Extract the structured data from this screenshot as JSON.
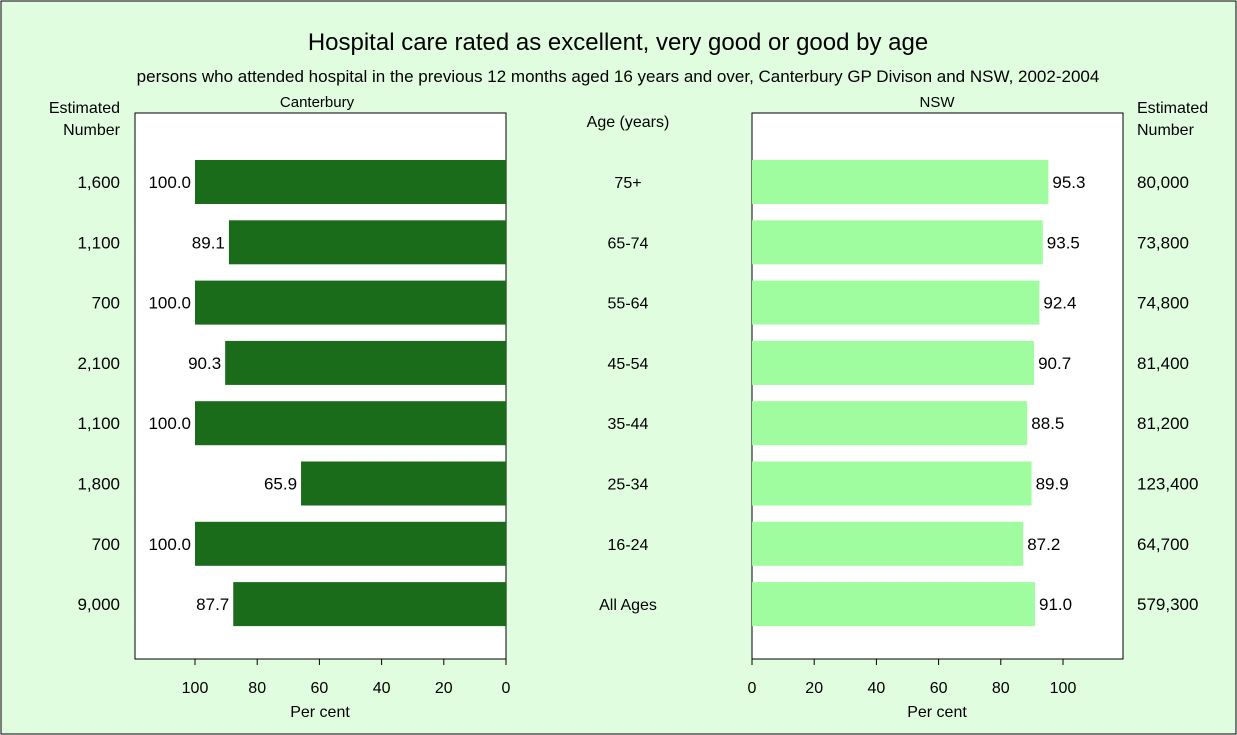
{
  "colors": {
    "background": "#e0fde0",
    "frame": "#000000",
    "canterbury_bar": "#1a6b1a",
    "nsw_bar": "#9ffc9f",
    "plot_background": "#ffffff"
  },
  "chart_data": {
    "type": "bar",
    "title": "Hospital care rated as excellent, very good or good by age",
    "subtitle": "persons who attended hospital in the previous 12 months aged 16 years and over, Canterbury GP Divison and NSW, 2002-2004",
    "category_header": "Age (years)",
    "categories": [
      "75+",
      "65-74",
      "55-64",
      "45-54",
      "35-44",
      "25-34",
      "16-24",
      "All Ages"
    ],
    "xlabel": "Per cent",
    "xlim": [
      0,
      120
    ],
    "xticks": [
      0,
      20,
      40,
      60,
      80,
      100
    ],
    "grid": false,
    "series": [
      {
        "name": "Canterbury",
        "values": [
          100.0,
          89.1,
          100.0,
          90.3,
          100.0,
          65.9,
          100.0,
          87.7
        ],
        "value_labels": [
          "100.0",
          "89.1",
          "100.0",
          "90.3",
          "100.0",
          "65.9",
          "100.0",
          "87.7"
        ],
        "estimated_number_header": [
          "Estimated",
          "Number"
        ],
        "estimated_numbers": [
          "1,600",
          "1,100",
          "700",
          "2,100",
          "1,100",
          "1,800",
          "700",
          "9,000"
        ]
      },
      {
        "name": "NSW",
        "values": [
          95.3,
          93.5,
          92.4,
          90.7,
          88.5,
          89.9,
          87.2,
          91.0
        ],
        "value_labels": [
          "95.3",
          "93.5",
          "92.4",
          "90.7",
          "88.5",
          "89.9",
          "87.2",
          "91.0"
        ],
        "estimated_number_header": [
          "Estimated",
          "Number"
        ],
        "estimated_numbers": [
          "80,000",
          "73,800",
          "74,800",
          "81,400",
          "81,200",
          "123,400",
          "64,700",
          "579,300"
        ]
      }
    ]
  }
}
